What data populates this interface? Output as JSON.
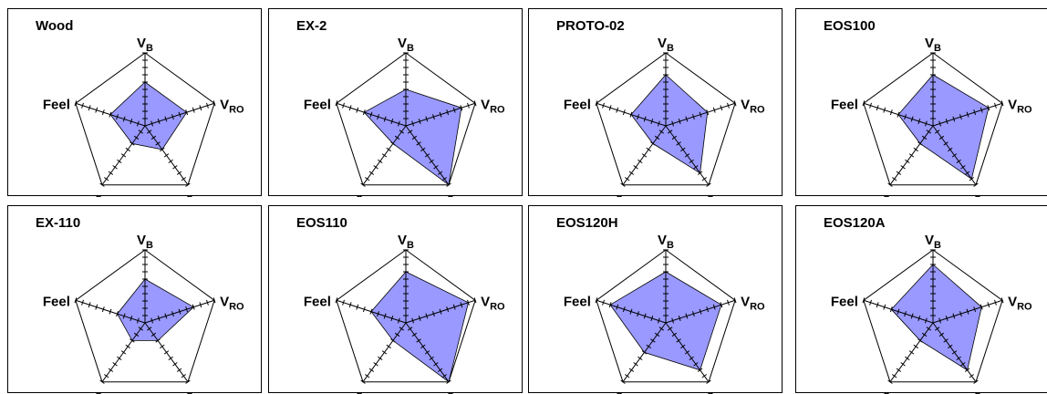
{
  "chart_data": [
    {
      "type": "radar",
      "title": "Wood",
      "values": [
        6,
        6,
        4,
        3,
        5
      ]
    },
    {
      "type": "radar",
      "title": "EX-2",
      "values": [
        5,
        8,
        10,
        3,
        6
      ]
    },
    {
      "type": "radar",
      "title": "PROTO-02",
      "values": [
        7,
        6,
        8,
        3,
        5
      ]
    },
    {
      "type": "radar",
      "title": "EOS100",
      "values": [
        7,
        8,
        9,
        3,
        5
      ]
    },
    {
      "type": "radar",
      "title": "EX-110",
      "values": [
        6,
        7,
        3,
        3,
        4
      ]
    },
    {
      "type": "radar",
      "title": "EOS110",
      "values": [
        7,
        9,
        10,
        3,
        5
      ]
    },
    {
      "type": "radar",
      "title": "EOS120H",
      "values": [
        7,
        8,
        8,
        5,
        8
      ]
    },
    {
      "type": "radar",
      "title": "EOS120A",
      "values": [
        8,
        7,
        8,
        3,
        6
      ]
    }
  ],
  "axes": [
    {
      "key": "vb",
      "main": "V",
      "sub": "B"
    },
    {
      "key": "vro",
      "main": "V",
      "sub": "RO"
    },
    {
      "key": "er",
      "main": "e",
      "sub": "r"
    },
    {
      "key": "e",
      "main": "e",
      "sub": ""
    },
    {
      "key": "feel",
      "main": "Feel",
      "sub": ""
    }
  ],
  "max": 10,
  "colors": {
    "fill": "#9999ff",
    "fill_stroke": "#000000",
    "axis": "#000000",
    "outline": "#000000"
  }
}
